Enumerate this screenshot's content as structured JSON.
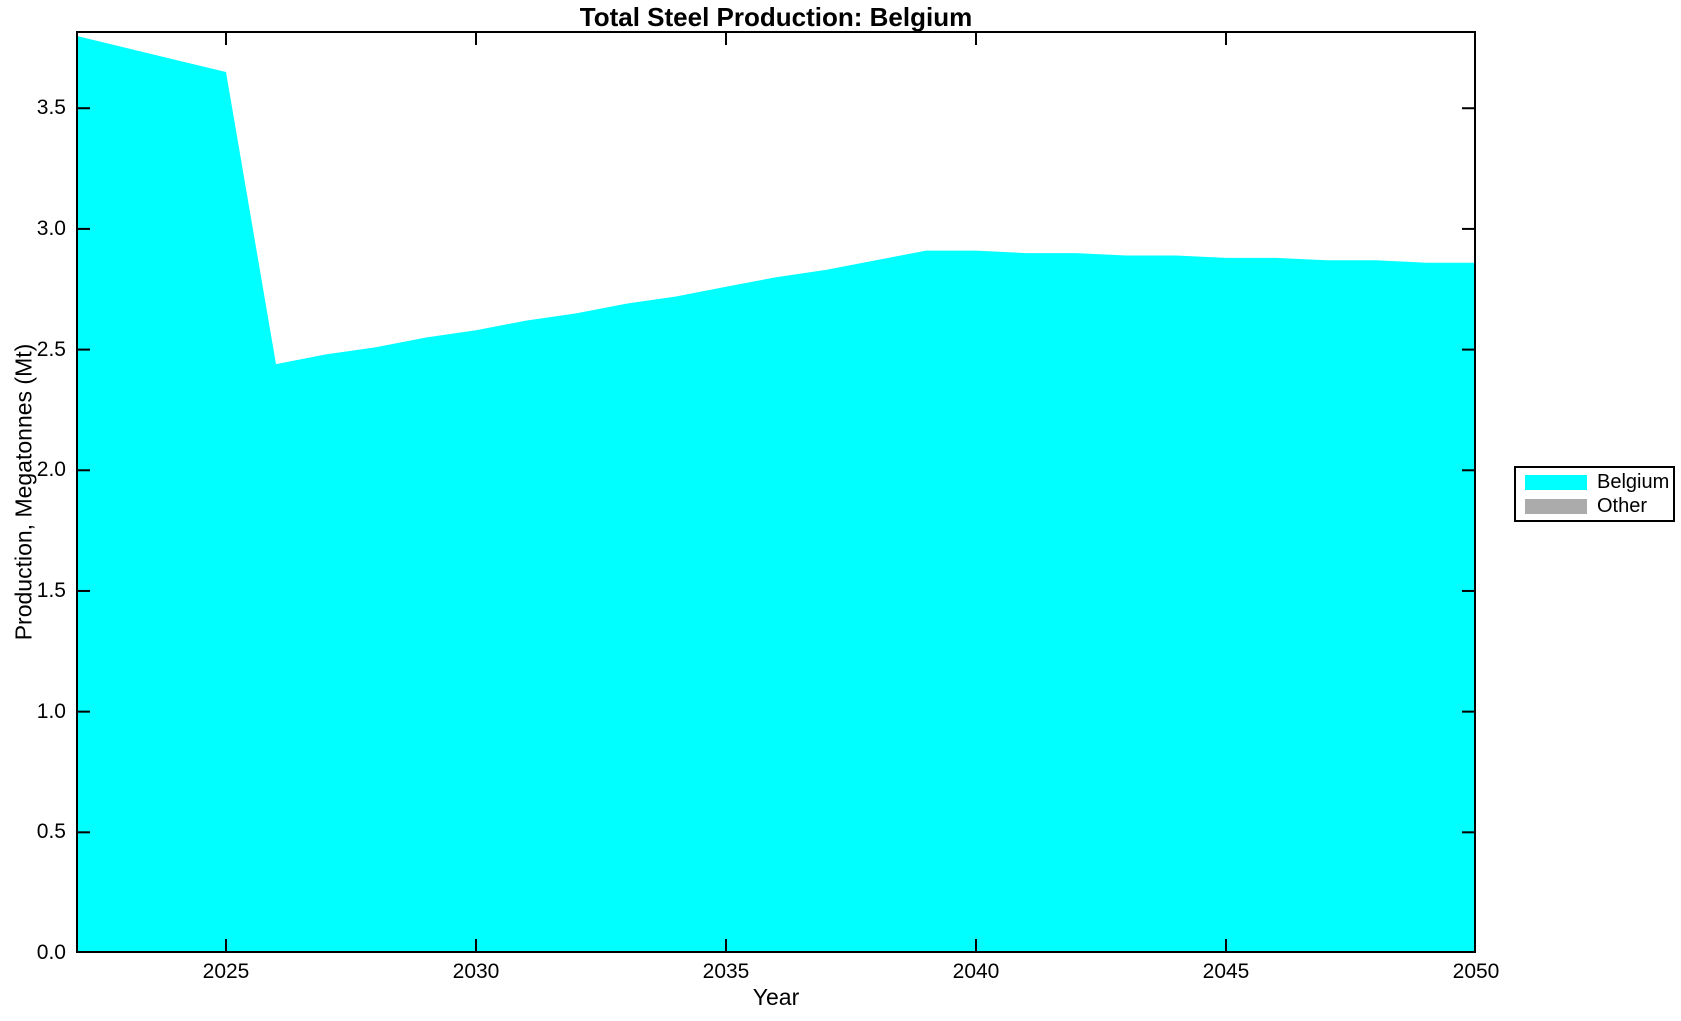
{
  "figure": {
    "title": "Total Steel Production: Belgium",
    "xlabel": "Year",
    "ylabel": "Production, Megatonnes (Mt)"
  },
  "legend": {
    "entries": [
      {
        "label": "Belgium",
        "color": "#00FFFF"
      },
      {
        "label": "Other",
        "color": "#ABABAB"
      }
    ]
  },
  "chart_data": {
    "type": "area",
    "title": "Total Steel Production: Belgium",
    "xlabel": "Year",
    "ylabel": "Production, Megatonnes (Mt)",
    "xlim": [
      2022,
      2050
    ],
    "ylim": [
      0,
      3.82
    ],
    "xticks": [
      "2025",
      "2030",
      "2035",
      "2040",
      "2045",
      "2050"
    ],
    "yticks": [
      "0.0",
      "0.5",
      "1.0",
      "1.5",
      "2.0",
      "2.5",
      "3.0",
      "3.5"
    ],
    "grid": false,
    "legend_position": "right-center",
    "x": [
      2022,
      2023,
      2024,
      2025,
      2026,
      2027,
      2028,
      2029,
      2030,
      2031,
      2032,
      2033,
      2034,
      2035,
      2036,
      2037,
      2038,
      2039,
      2040,
      2041,
      2042,
      2043,
      2044,
      2045,
      2046,
      2047,
      2048,
      2049,
      2050
    ],
    "series": [
      {
        "name": "Belgium",
        "color": "#00FFFF",
        "values": [
          3.8,
          3.75,
          3.7,
          3.65,
          2.44,
          2.48,
          2.51,
          2.55,
          2.58,
          2.62,
          2.65,
          2.69,
          2.72,
          2.76,
          2.8,
          2.83,
          2.87,
          2.91,
          2.91,
          2.9,
          2.9,
          2.89,
          2.89,
          2.88,
          2.88,
          2.87,
          2.87,
          2.86,
          2.86
        ]
      },
      {
        "name": "Other",
        "color": "#ABABAB",
        "values": [
          0,
          0,
          0,
          0,
          0,
          0,
          0,
          0,
          0,
          0,
          0,
          0,
          0,
          0,
          0,
          0,
          0,
          0,
          0,
          0,
          0,
          0,
          0,
          0,
          0,
          0,
          0,
          0,
          0
        ]
      }
    ]
  }
}
